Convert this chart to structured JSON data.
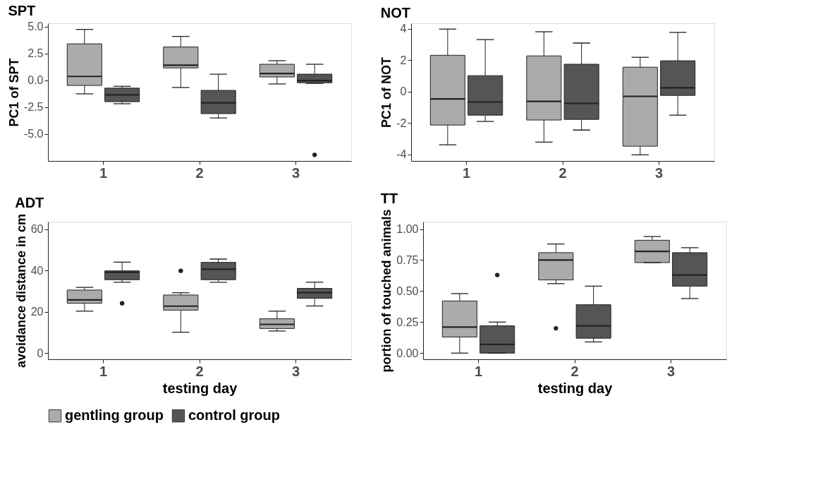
{
  "chart_data": [
    {
      "type": "box",
      "title": "SPT",
      "ylabel": "PC1 of SPT",
      "categories": [
        "1",
        "2",
        "3"
      ],
      "ylim": [
        -7.5,
        5.3
      ],
      "yticks": [
        {
          "value": 5,
          "label": "5.0"
        },
        2.5,
        {
          "value": 0,
          "label": "0.0"
        },
        -2.5,
        {
          "value": -5,
          "label": "-5.0"
        }
      ],
      "legend": "bottom",
      "series": [
        {
          "name": "gentling group",
          "color": "#ababab",
          "boxes": [
            {
              "low": -1.26,
              "q1": -0.48,
              "median": 0.36,
              "q3": 3.39,
              "high": 4.73
            },
            {
              "low": -0.67,
              "q1": 1.15,
              "median": 1.4,
              "q3": 3.1,
              "high": 4.08
            },
            {
              "low": -0.34,
              "q1": 0.31,
              "median": 0.63,
              "q3": 1.49,
              "high": 1.82
            }
          ]
        },
        {
          "name": "control group",
          "color": "#555555",
          "boxes": [
            {
              "low": -2.18,
              "q1": -1.99,
              "median": -1.36,
              "q3": -0.73,
              "high": -0.56
            },
            {
              "low": -3.5,
              "q1": -3.1,
              "median": -2.09,
              "q3": -0.94,
              "high": 0.57
            },
            {
              "low": -0.29,
              "q1": -0.23,
              "median": -0.02,
              "q3": 0.57,
              "high": 1.49,
              "outliers": [
                -6.93
              ]
            }
          ]
        }
      ]
    },
    {
      "type": "box",
      "title": "NOT",
      "ylabel": "PC1 of NOT",
      "categories": [
        "1",
        "2",
        "3"
      ],
      "ylim": [
        -4.42,
        4.36
      ],
      "yticks": [
        4,
        2,
        0,
        -2,
        -4
      ],
      "legend": "bottom",
      "series": [
        {
          "name": "gentling group",
          "color": "#ababab",
          "boxes": [
            {
              "low": -3.39,
              "q1": -2.13,
              "median": -0.46,
              "q3": 2.32,
              "high": 3.99
            },
            {
              "low": -3.22,
              "q1": -1.81,
              "median": -0.62,
              "q3": 2.28,
              "high": 3.82
            },
            {
              "low": -4.03,
              "q1": -3.48,
              "median": -0.3,
              "q3": 1.56,
              "high": 2.19
            }
          ]
        },
        {
          "name": "control group",
          "color": "#555555",
          "boxes": [
            {
              "low": -1.9,
              "q1": -1.5,
              "median": -0.66,
              "q3": 1.02,
              "high": 3.32
            },
            {
              "low": -2.45,
              "q1": -1.77,
              "median": -0.75,
              "q3": 1.75,
              "high": 3.1
            },
            {
              "low": -1.5,
              "q1": -0.24,
              "median": 0.25,
              "q3": 1.97,
              "high": 3.78
            }
          ]
        }
      ]
    },
    {
      "type": "box",
      "title": "ADT",
      "xlabel": "testing day",
      "ylabel": "avoidance distance in cm",
      "categories": [
        "1",
        "2",
        "3"
      ],
      "ylim": [
        -3,
        63.6
      ],
      "yticks": [
        0,
        20,
        40,
        60
      ],
      "legend": "bottom",
      "series": [
        {
          "name": "gentling group",
          "color": "#ababab",
          "boxes": [
            {
              "low": 20.3,
              "q1": 24.1,
              "median": 25.7,
              "q3": 30.5,
              "high": 31.8
            },
            {
              "low": 10.1,
              "q1": 20.8,
              "median": 22.7,
              "q3": 28.1,
              "high": 29.2,
              "outliers": [
                39.8
              ]
            },
            {
              "low": 10.7,
              "q1": 11.9,
              "median": 13.9,
              "q3": 16.6,
              "high": 20.3
            }
          ]
        },
        {
          "name": "control group",
          "color": "#555555",
          "boxes": [
            {
              "low": 34.3,
              "q1": 35.5,
              "median": 39.1,
              "q3": 39.8,
              "high": 44,
              "outliers": [
                24.1
              ]
            },
            {
              "low": 34.3,
              "q1": 35.5,
              "median": 40.6,
              "q3": 43.9,
              "high": 45.5
            },
            {
              "low": 22.8,
              "q1": 26.5,
              "median": 29.2,
              "q3": 31.3,
              "high": 34.3
            }
          ]
        }
      ]
    },
    {
      "type": "box",
      "title": "TT",
      "xlabel": "testing day",
      "ylabel": "portion of touched animals",
      "categories": [
        "1",
        "2",
        "3"
      ],
      "ylim": [
        -0.05,
        1.06
      ],
      "yticks": [
        {
          "value": 0,
          "label": "0.00"
        },
        0.25,
        {
          "value": 0.5,
          "label": "0.50"
        },
        0.75,
        {
          "value": 1,
          "label": "1.00"
        }
      ],
      "legend": "bottom",
      "series": [
        {
          "name": "gentling group",
          "color": "#ababab",
          "boxes": [
            {
              "low": 0,
              "q1": 0.13,
              "median": 0.21,
              "q3": 0.42,
              "high": 0.48
            },
            {
              "low": 0.56,
              "q1": 0.59,
              "median": 0.75,
              "q3": 0.81,
              "high": 0.88,
              "outliers": [
                0.2
              ]
            },
            {
              "low": 0.73,
              "q1": 0.73,
              "median": 0.82,
              "q3": 0.91,
              "high": 0.94
            }
          ]
        },
        {
          "name": "control group",
          "color": "#555555",
          "boxes": [
            {
              "low": 0,
              "q1": 0,
              "median": 0.07,
              "q3": 0.22,
              "high": 0.25,
              "outliers": [
                0.63
              ]
            },
            {
              "low": 0.09,
              "q1": 0.12,
              "median": 0.22,
              "q3": 0.39,
              "high": 0.54
            },
            {
              "low": 0.44,
              "q1": 0.54,
              "median": 0.63,
              "q3": 0.81,
              "high": 0.85
            }
          ]
        }
      ]
    }
  ]
}
